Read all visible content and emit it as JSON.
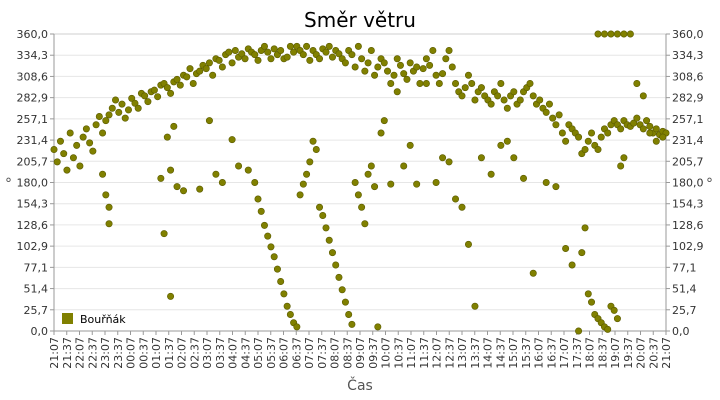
{
  "chart_data": {
    "type": "scatter",
    "title": "Směr větru",
    "xlabel": "Čas",
    "ylabel": "°",
    "ylabel_right": "°",
    "ylim": [
      0,
      360
    ],
    "yticks": [
      "0,0",
      "25,7",
      "51,4",
      "77,1",
      "102,9",
      "128,6",
      "154,3",
      "180,0",
      "205,7",
      "231,4",
      "257,1",
      "282,9",
      "308,6",
      "334,3",
      "360,0"
    ],
    "xticks": [
      "21:07",
      "21:37",
      "22:07",
      "22:37",
      "23:07",
      "23:37",
      "00:07",
      "00:37",
      "01:07",
      "01:37",
      "02:07",
      "02:37",
      "03:07",
      "03:37",
      "04:07",
      "04:37",
      "05:07",
      "05:37",
      "06:07",
      "06:37",
      "07:07",
      "07:37",
      "08:07",
      "08:37",
      "09:07",
      "09:37",
      "10:07",
      "10:37",
      "11:07",
      "11:37",
      "12:07",
      "12:37",
      "13:07",
      "13:37",
      "14:07",
      "14:37",
      "15:07",
      "15:37",
      "16:07",
      "16:37",
      "17:07",
      "17:37",
      "18:07",
      "18:37",
      "19:07",
      "19:37",
      "20:07",
      "20:37",
      "21:07"
    ],
    "grid": true,
    "legend_position": "bottom-left",
    "colors": {
      "series": "#808000",
      "grid": "#e6e6e6",
      "axis": "#999999"
    },
    "series": [
      {
        "name": "Bouřňák",
        "points": [
          [
            0,
            220
          ],
          [
            1,
            205
          ],
          [
            2,
            230
          ],
          [
            3,
            215
          ],
          [
            4,
            195
          ],
          [
            5,
            240
          ],
          [
            6,
            210
          ],
          [
            7,
            225
          ],
          [
            8,
            200
          ],
          [
            9,
            235
          ],
          [
            10,
            245
          ],
          [
            11,
            228
          ],
          [
            12,
            218
          ],
          [
            13,
            250
          ],
          [
            14,
            260
          ],
          [
            15,
            240
          ],
          [
            16,
            255
          ],
          [
            17,
            262
          ],
          [
            18,
            270
          ],
          [
            19,
            280
          ],
          [
            20,
            265
          ],
          [
            21,
            275
          ],
          [
            22,
            258
          ],
          [
            23,
            268
          ],
          [
            24,
            282
          ],
          [
            25,
            276
          ],
          [
            26,
            270
          ],
          [
            27,
            288
          ],
          [
            28,
            285
          ],
          [
            29,
            278
          ],
          [
            30,
            290
          ],
          [
            31,
            292
          ],
          [
            32,
            284
          ],
          [
            33,
            298
          ],
          [
            34,
            300
          ],
          [
            35,
            295
          ],
          [
            36,
            288
          ],
          [
            37,
            302
          ],
          [
            38,
            305
          ],
          [
            39,
            298
          ],
          [
            40,
            310
          ],
          [
            41,
            308
          ],
          [
            42,
            318
          ],
          [
            43,
            300
          ],
          [
            44,
            312
          ],
          [
            45,
            315
          ],
          [
            46,
            322
          ],
          [
            47,
            318
          ],
          [
            48,
            325
          ],
          [
            49,
            310
          ],
          [
            50,
            330
          ],
          [
            51,
            328
          ],
          [
            52,
            320
          ],
          [
            53,
            335
          ],
          [
            54,
            338
          ],
          [
            55,
            325
          ],
          [
            56,
            340
          ],
          [
            57,
            332
          ],
          [
            58,
            336
          ],
          [
            59,
            330
          ],
          [
            60,
            342
          ],
          [
            61,
            338
          ],
          [
            62,
            335
          ],
          [
            63,
            328
          ],
          [
            64,
            340
          ],
          [
            65,
            345
          ],
          [
            66,
            338
          ],
          [
            67,
            330
          ],
          [
            68,
            342
          ],
          [
            69,
            335
          ],
          [
            70,
            340
          ],
          [
            71,
            330
          ],
          [
            72,
            332
          ],
          [
            73,
            345
          ],
          [
            74,
            338
          ],
          [
            75,
            345
          ],
          [
            76,
            340
          ],
          [
            77,
            335
          ],
          [
            78,
            345
          ],
          [
            79,
            328
          ],
          [
            80,
            340
          ],
          [
            81,
            335
          ],
          [
            82,
            330
          ],
          [
            83,
            342
          ],
          [
            84,
            338
          ],
          [
            85,
            345
          ],
          [
            86,
            332
          ],
          [
            87,
            340
          ],
          [
            88,
            336
          ],
          [
            89,
            330
          ],
          [
            90,
            325
          ],
          [
            91,
            340
          ],
          [
            92,
            335
          ],
          [
            93,
            320
          ],
          [
            94,
            345
          ],
          [
            95,
            330
          ],
          [
            96,
            315
          ],
          [
            97,
            325
          ],
          [
            98,
            340
          ],
          [
            99,
            310
          ],
          [
            100,
            320
          ],
          [
            101,
            330
          ],
          [
            102,
            325
          ],
          [
            103,
            315
          ],
          [
            104,
            300
          ],
          [
            105,
            310
          ],
          [
            106,
            330
          ],
          [
            107,
            322
          ],
          [
            108,
            312
          ],
          [
            109,
            305
          ],
          [
            110,
            325
          ],
          [
            111,
            315
          ],
          [
            112,
            320
          ],
          [
            113,
            300
          ],
          [
            114,
            318
          ],
          [
            115,
            330
          ],
          [
            116,
            322
          ],
          [
            117,
            340
          ],
          [
            118,
            310
          ],
          [
            119,
            300
          ],
          [
            120,
            312
          ],
          [
            121,
            330
          ],
          [
            122,
            340
          ],
          [
            123,
            320
          ],
          [
            124,
            300
          ],
          [
            125,
            290
          ],
          [
            126,
            285
          ],
          [
            127,
            295
          ],
          [
            128,
            310
          ],
          [
            129,
            300
          ],
          [
            130,
            280
          ],
          [
            131,
            290
          ],
          [
            132,
            295
          ],
          [
            133,
            285
          ],
          [
            134,
            280
          ],
          [
            135,
            275
          ],
          [
            136,
            290
          ],
          [
            137,
            285
          ],
          [
            138,
            300
          ],
          [
            139,
            280
          ],
          [
            140,
            270
          ],
          [
            141,
            285
          ],
          [
            142,
            290
          ],
          [
            143,
            275
          ],
          [
            144,
            280
          ],
          [
            145,
            290
          ],
          [
            146,
            295
          ],
          [
            147,
            300
          ],
          [
            148,
            285
          ],
          [
            149,
            275
          ],
          [
            150,
            280
          ],
          [
            151,
            270
          ],
          [
            152,
            265
          ],
          [
            153,
            275
          ],
          [
            154,
            258
          ],
          [
            155,
            250
          ],
          [
            156,
            262
          ],
          [
            157,
            240
          ],
          [
            158,
            230
          ],
          [
            159,
            250
          ],
          [
            160,
            245
          ],
          [
            161,
            240
          ],
          [
            162,
            235
          ],
          [
            163,
            215
          ],
          [
            164,
            220
          ],
          [
            165,
            230
          ],
          [
            166,
            240
          ],
          [
            167,
            225
          ],
          [
            168,
            220
          ],
          [
            169,
            235
          ],
          [
            170,
            245
          ],
          [
            171,
            240
          ],
          [
            172,
            250
          ],
          [
            173,
            255
          ],
          [
            174,
            250
          ],
          [
            175,
            245
          ],
          [
            176,
            255
          ],
          [
            177,
            250
          ],
          [
            178,
            248
          ],
          [
            179,
            252
          ],
          [
            180,
            258
          ],
          [
            181,
            250
          ],
          [
            182,
            245
          ],
          [
            183,
            255
          ],
          [
            184,
            248
          ],
          [
            185,
            240
          ],
          [
            186,
            245
          ],
          [
            187,
            238
          ],
          [
            188,
            242
          ],
          [
            189,
            240
          ],
          [
            15,
            190
          ],
          [
            16,
            165
          ],
          [
            17,
            150
          ],
          [
            17,
            130
          ],
          [
            33,
            185
          ],
          [
            34,
            118
          ],
          [
            35,
            235
          ],
          [
            36,
            42
          ],
          [
            36,
            195
          ],
          [
            37,
            248
          ],
          [
            38,
            175
          ],
          [
            40,
            170
          ],
          [
            45,
            172
          ],
          [
            48,
            255
          ],
          [
            50,
            190
          ],
          [
            52,
            180
          ],
          [
            55,
            232
          ],
          [
            57,
            200
          ],
          [
            60,
            195
          ],
          [
            62,
            180
          ],
          [
            63,
            160
          ],
          [
            64,
            145
          ],
          [
            65,
            128
          ],
          [
            66,
            115
          ],
          [
            67,
            102
          ],
          [
            68,
            90
          ],
          [
            69,
            75
          ],
          [
            70,
            60
          ],
          [
            71,
            45
          ],
          [
            72,
            30
          ],
          [
            73,
            20
          ],
          [
            74,
            10
          ],
          [
            75,
            5
          ],
          [
            76,
            165
          ],
          [
            77,
            178
          ],
          [
            78,
            190
          ],
          [
            79,
            205
          ],
          [
            80,
            230
          ],
          [
            81,
            220
          ],
          [
            82,
            150
          ],
          [
            83,
            140
          ],
          [
            84,
            125
          ],
          [
            85,
            110
          ],
          [
            86,
            95
          ],
          [
            87,
            80
          ],
          [
            88,
            65
          ],
          [
            89,
            50
          ],
          [
            90,
            35
          ],
          [
            91,
            20
          ],
          [
            92,
            8
          ],
          [
            93,
            180
          ],
          [
            94,
            165
          ],
          [
            95,
            150
          ],
          [
            96,
            130
          ],
          [
            97,
            190
          ],
          [
            98,
            200
          ],
          [
            99,
            175
          ],
          [
            100,
            5
          ],
          [
            101,
            240
          ],
          [
            102,
            255
          ],
          [
            104,
            178
          ],
          [
            106,
            290
          ],
          [
            108,
            200
          ],
          [
            110,
            225
          ],
          [
            112,
            178
          ],
          [
            115,
            300
          ],
          [
            118,
            180
          ],
          [
            120,
            210
          ],
          [
            122,
            205
          ],
          [
            124,
            160
          ],
          [
            126,
            150
          ],
          [
            128,
            105
          ],
          [
            130,
            30
          ],
          [
            132,
            210
          ],
          [
            135,
            190
          ],
          [
            138,
            225
          ],
          [
            140,
            230
          ],
          [
            142,
            210
          ],
          [
            145,
            185
          ],
          [
            148,
            70
          ],
          [
            152,
            180
          ],
          [
            155,
            175
          ],
          [
            158,
            100
          ],
          [
            160,
            80
          ],
          [
            162,
            0
          ],
          [
            163,
            95
          ],
          [
            164,
            125
          ],
          [
            165,
            45
          ],
          [
            166,
            35
          ],
          [
            167,
            20
          ],
          [
            168,
            15
          ],
          [
            169,
            10
          ],
          [
            170,
            5
          ],
          [
            171,
            2
          ],
          [
            172,
            30
          ],
          [
            173,
            25
          ],
          [
            174,
            15
          ],
          [
            175,
            200
          ],
          [
            176,
            210
          ],
          [
            168,
            360
          ],
          [
            170,
            360
          ],
          [
            172,
            360
          ],
          [
            174,
            360
          ],
          [
            176,
            360
          ],
          [
            178,
            360
          ],
          [
            180,
            300
          ],
          [
            182,
            285
          ],
          [
            184,
            240
          ],
          [
            186,
            230
          ],
          [
            188,
            235
          ]
        ]
      }
    ]
  }
}
